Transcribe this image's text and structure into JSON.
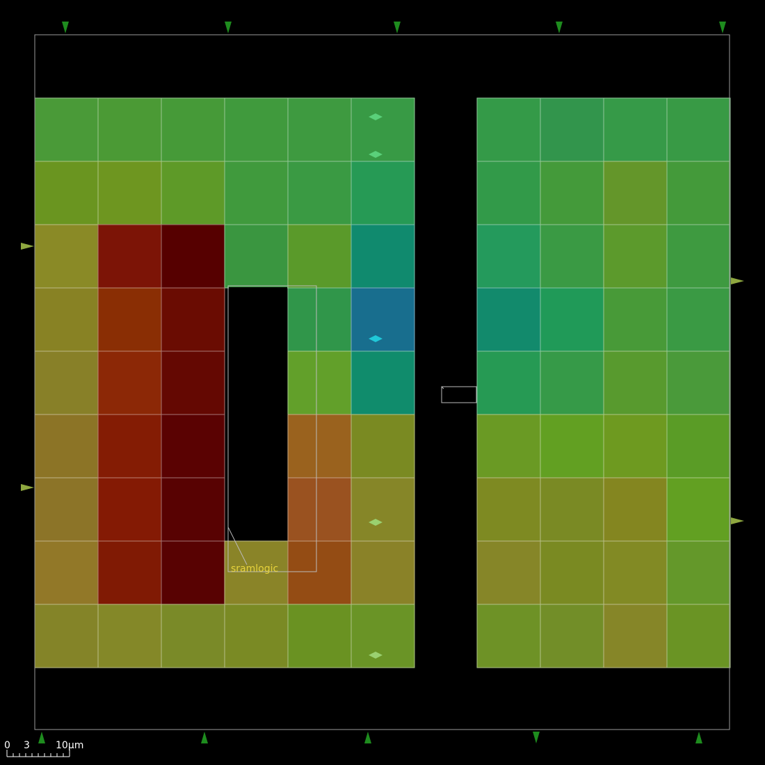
{
  "colors": {
    "background": "#000000",
    "die_outline": "#9a9a9a",
    "pin_marker": "#1e8c1e",
    "io_marker": "#8fa840",
    "macro_label": "#e6d23c",
    "scale_bar": "#ffffff"
  },
  "macro": {
    "name": "sramlogic"
  },
  "scale_bar": {
    "zero_label": "0",
    "mid_label": "3",
    "end_label": "10μm"
  },
  "heatmap": {
    "left_block": {
      "rows": [
        [
          "#4a9a38",
          "#4b9a35",
          "#469a38",
          "#409a3d",
          "#3e9a40",
          "#389a45"
        ],
        [
          "#6a9520",
          "#6e9620",
          "#5e9a28",
          "#409a3d",
          "#3a9a43",
          "#269a55"
        ],
        [
          "#8a8a26",
          "#7c1406",
          "#560000",
          "#3a9640",
          "#5a9a2a",
          "#108a6e"
        ],
        [
          "#888224",
          "#8a2e04",
          "#6a0c02",
          null,
          "#30964a",
          "#186e8e"
        ],
        [
          "#888028",
          "#8c2806",
          "#640802",
          null,
          "#62a02a",
          "#108c6c"
        ],
        [
          "#8c7426",
          "#841c04",
          "#5a0202",
          null,
          "#9a621e",
          "#7a8a22"
        ],
        [
          "#8c7428",
          "#841a04",
          "#580202",
          null,
          "#9a5220",
          "#868628"
        ],
        [
          "#927828",
          "#801a04",
          "#580202",
          "#8a8428",
          "#944c14",
          "#8a8228"
        ],
        [
          "#848428",
          "#848828",
          "#7a8a28",
          "#7a8a24",
          "#6a9222",
          "#6a9426"
        ]
      ]
    },
    "right_block": {
      "rows": [
        [
          "#349a48",
          "#32954c",
          "#369a48",
          "#389a45"
        ],
        [
          "#329a49",
          "#449a3a",
          "#64962a",
          "#449a3a"
        ],
        [
          "#249a5c",
          "#3a9a44",
          "#5c9a2c",
          "#3e9a40"
        ],
        [
          "#128a6c",
          "#209a58",
          "#489a38",
          "#3a9a44"
        ],
        [
          "#269a54",
          "#369a48",
          "#589a2e",
          "#4a9a3a"
        ],
        [
          "#6a9a24",
          "#62a022",
          "#6e9a20",
          "#5a9c26"
        ],
        [
          "#7e8a22",
          "#7a8a24",
          "#848620",
          "#62a022"
        ],
        [
          "#868628",
          "#7a8a22",
          "#828a24",
          "#64982a"
        ],
        [
          "#6e9226",
          "#728e28",
          "#868628",
          "#6a9424"
        ]
      ]
    }
  }
}
